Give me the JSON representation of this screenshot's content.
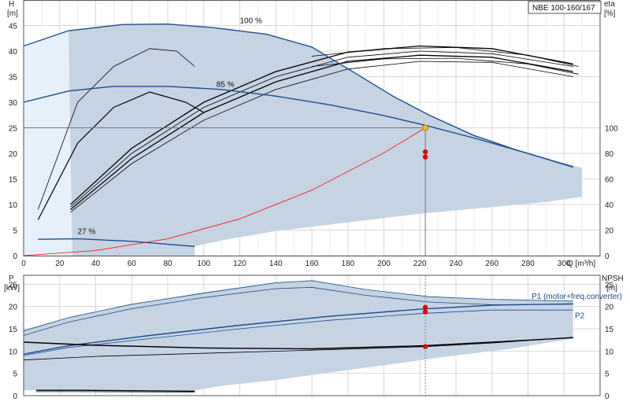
{
  "chart_data": [
    {
      "type": "line",
      "title": "NBE 100-160/167",
      "xlabel": "Q [m³/h]",
      "ylabel_left": "H",
      "ylabel_left_unit": "[m]",
      "ylabel_right": "eta",
      "ylabel_right_unit": "[%]",
      "xlim": [
        0,
        320
      ],
      "ylim_left": [
        0,
        50
      ],
      "ylim_right": [
        0,
        100
      ],
      "x_ticks": [
        "0",
        "20",
        "40",
        "60",
        "80",
        "100",
        "120",
        "140",
        "160",
        "180",
        "200",
        "220",
        "240",
        "260",
        "280",
        "300"
      ],
      "x_tick_values": [
        0,
        20,
        40,
        60,
        80,
        100,
        120,
        140,
        160,
        180,
        200,
        220,
        240,
        260,
        280,
        300
      ],
      "y_left_ticks": [
        "0",
        "5",
        "10",
        "15",
        "20",
        "25",
        "30",
        "35",
        "40",
        "45"
      ],
      "y_left_tick_values": [
        0,
        5,
        10,
        15,
        20,
        25,
        30,
        35,
        40,
        45
      ],
      "y_right_ticks": [
        "0",
        "20",
        "40",
        "60",
        "80",
        "100"
      ],
      "y_right_tick_values": [
        0,
        20,
        40,
        60,
        80,
        100
      ],
      "grid": true,
      "operating_envelope": [
        [
          0,
          41
        ],
        [
          25,
          44
        ],
        [
          55,
          45.2
        ],
        [
          80,
          45.3
        ],
        [
          105,
          44.6
        ],
        [
          135,
          43.3
        ],
        [
          160,
          40.8
        ],
        [
          185,
          35.5
        ],
        [
          205,
          31.2
        ],
        [
          225,
          27.5
        ],
        [
          250,
          23.5
        ],
        [
          275,
          20.5
        ],
        [
          300,
          18
        ],
        [
          310,
          17.2
        ],
        [
          310,
          11.5
        ],
        [
          290,
          10.5
        ],
        [
          260,
          9.5
        ],
        [
          220,
          8.2
        ],
        [
          180,
          6.5
        ],
        [
          140,
          4.8
        ],
        [
          110,
          3
        ],
        [
          95,
          1.8
        ],
        [
          95,
          0
        ],
        [
          27,
          0
        ],
        [
          25,
          2
        ],
        [
          20,
          5
        ],
        [
          13,
          10
        ],
        [
          8,
          15
        ],
        [
          4,
          20
        ],
        [
          2,
          25
        ],
        [
          0,
          28
        ]
      ],
      "head_curves": [
        {
          "label": "100 %",
          "label_at": [
            120,
            45.5
          ],
          "points": [
            [
              0,
              41
            ],
            [
              25,
              44
            ],
            [
              55,
              45.2
            ],
            [
              80,
              45.3
            ],
            [
              105,
              44.6
            ],
            [
              135,
              43.3
            ],
            [
              160,
              40.8
            ],
            [
              185,
              35.5
            ],
            [
              205,
              31.2
            ],
            [
              225,
              27.5
            ],
            [
              250,
              23.5
            ],
            [
              275,
              20.5
            ],
            [
              305,
              17.4
            ]
          ]
        },
        {
          "label": "85 %",
          "label_at": [
            107,
            33
          ],
          "points": [
            [
              0,
              30
            ],
            [
              25,
              32.2
            ],
            [
              50,
              33.1
            ],
            [
              80,
              33.1
            ],
            [
              110,
              32.5
            ],
            [
              140,
              31.2
            ],
            [
              170,
              29.5
            ],
            [
              200,
              27.4
            ],
            [
              223,
              25.5
            ],
            [
              250,
              23
            ],
            [
              280,
              20
            ],
            [
              305,
              17.3
            ]
          ]
        },
        {
          "label": "27 %",
          "label_at": [
            30,
            4.2
          ],
          "points": [
            [
              8,
              3.2
            ],
            [
              30,
              3.3
            ],
            [
              60,
              2.8
            ],
            [
              95,
              1.8
            ]
          ]
        }
      ],
      "eta_curves": [
        {
          "points": [
            [
              8,
              9
            ],
            [
              30,
              30
            ],
            [
              50,
              37
            ],
            [
              70,
              40.5
            ],
            [
              85,
              40
            ],
            [
              95,
              37
            ]
          ],
          "width": 0.8
        },
        {
          "points": [
            [
              8,
              7
            ],
            [
              30,
              22
            ],
            [
              50,
              29
            ],
            [
              70,
              32
            ],
            [
              90,
              30
            ],
            [
              100,
              28
            ]
          ],
          "width": 1.2
        },
        {
          "points": [
            [
              26,
              10
            ],
            [
              60,
              21
            ],
            [
              100,
              30
            ],
            [
              140,
              36
            ],
            [
              180,
              39.8
            ],
            [
              220,
              41
            ],
            [
              260,
              40.5
            ],
            [
              305,
              37.5
            ]
          ],
          "width": 1.3
        },
        {
          "points": [
            [
              26,
              9.5
            ],
            [
              60,
              20
            ],
            [
              100,
              29
            ],
            [
              140,
              35
            ],
            [
              180,
              38.8
            ],
            [
              220,
              40
            ],
            [
              260,
              39.5
            ],
            [
              305,
              37
            ]
          ],
          "width": 0.8
        },
        {
          "points": [
            [
              26,
              9
            ],
            [
              60,
              19
            ],
            [
              100,
              28
            ],
            [
              140,
              34
            ],
            [
              180,
              38
            ],
            [
              220,
              39.2
            ],
            [
              260,
              38.8
            ],
            [
              305,
              36
            ]
          ],
          "width": 1.3
        },
        {
          "points": [
            [
              26,
              8.5
            ],
            [
              60,
              18
            ],
            [
              100,
              26.5
            ],
            [
              140,
              32.5
            ],
            [
              180,
              36.5
            ],
            [
              220,
              38
            ],
            [
              260,
              37.8
            ],
            [
              305,
              35
            ]
          ],
          "width": 0.8
        },
        {
          "points": [
            [
              160,
              39
            ],
            [
              200,
              40.5
            ],
            [
              240,
              40.7
            ],
            [
              280,
              39.2
            ],
            [
              308,
              37
            ]
          ],
          "width": 0.8
        },
        {
          "points": [
            [
              160,
              37
            ],
            [
              200,
              38.5
            ],
            [
              240,
              38.6
            ],
            [
              280,
              37.5
            ],
            [
              308,
              35.5
            ]
          ],
          "width": 0.8
        }
      ],
      "system_curve": {
        "points": [
          [
            0,
            0
          ],
          [
            40,
            1
          ],
          [
            80,
            3.3
          ],
          [
            120,
            7.2
          ],
          [
            160,
            12.8
          ],
          [
            200,
            20.1
          ],
          [
            223,
            25
          ]
        ]
      },
      "duty_point": {
        "x": 223,
        "y": 25,
        "fill": "#f2c318"
      },
      "duty_markers": [
        {
          "x": 223,
          "y": 20.3
        },
        {
          "x": 223,
          "y": 19.3
        }
      ]
    },
    {
      "type": "line",
      "ylabel_left": "P",
      "ylabel_left_unit": "[kW]",
      "ylabel_right": "NPSH",
      "ylabel_right_unit": "[m]",
      "xlim": [
        0,
        320
      ],
      "ylim": [
        0,
        27
      ],
      "y_ticks": [
        "0",
        "5",
        "10",
        "15",
        "20",
        "25"
      ],
      "y_tick_values": [
        0,
        5,
        10,
        15,
        20,
        25
      ],
      "grid": true,
      "power_envelope": [
        [
          0,
          14.8
        ],
        [
          25,
          17.5
        ],
        [
          60,
          20.5
        ],
        [
          100,
          23.2
        ],
        [
          140,
          25.5
        ],
        [
          160,
          25.8
        ],
        [
          190,
          23.8
        ],
        [
          225,
          22.2
        ],
        [
          260,
          21.6
        ],
        [
          305,
          21.3
        ],
        [
          305,
          12.8
        ],
        [
          270,
          10.5
        ],
        [
          230,
          8.5
        ],
        [
          200,
          6.8
        ],
        [
          170,
          5.2
        ],
        [
          140,
          3.5
        ],
        [
          110,
          2.2
        ],
        [
          95,
          1.2
        ],
        [
          0,
          1.2
        ]
      ],
      "series": [
        {
          "name": "P1 (motor+freq.converter)",
          "label_at": [
            282,
            22.4
          ],
          "points": [
            [
              0,
              14.5
            ],
            [
              25,
              17.5
            ],
            [
              60,
              20.5
            ],
            [
              100,
              23
            ],
            [
              140,
              25.3
            ],
            [
              160,
              25.8
            ],
            [
              190,
              23.8
            ],
            [
              225,
              22.2
            ],
            [
              260,
              21.6
            ],
            [
              305,
              21.2
            ]
          ],
          "width": 0.8
        },
        {
          "name": "",
          "points": [
            [
              0,
              13.5
            ],
            [
              25,
              16.5
            ],
            [
              60,
              19.5
            ],
            [
              100,
              22
            ],
            [
              140,
              24
            ],
            [
              160,
              24.3
            ],
            [
              190,
              22.5
            ],
            [
              225,
              21
            ],
            [
              260,
              20.4
            ],
            [
              305,
              20.5
            ]
          ],
          "width": 0.8
        },
        {
          "name": "",
          "points": [
            [
              0,
              9.3
            ],
            [
              25,
              11.2
            ],
            [
              70,
              13.5
            ],
            [
              120,
              15.8
            ],
            [
              170,
              17.8
            ],
            [
              220,
              19.4
            ],
            [
              260,
              20.3
            ],
            [
              305,
              20.6
            ]
          ],
          "width": 1.4
        },
        {
          "name": "P2",
          "label_at": [
            306,
            18.1
          ],
          "points": [
            [
              0,
              9
            ],
            [
              25,
              10.8
            ],
            [
              70,
              12.8
            ],
            [
              120,
              15
            ],
            [
              170,
              16.9
            ],
            [
              220,
              18.4
            ],
            [
              260,
              19.2
            ],
            [
              305,
              19.2
            ]
          ],
          "width": 0.8
        },
        {
          "name": "",
          "points": [
            [
              0,
              8
            ],
            [
              40,
              8.8
            ],
            [
              100,
              9.5
            ],
            [
              160,
              10.2
            ],
            [
              223,
              11
            ],
            [
              260,
              11.8
            ],
            [
              305,
              13.1
            ]
          ],
          "width": 0.8
        },
        {
          "name": "",
          "points": [
            [
              0,
              12
            ],
            [
              40,
              11.3
            ],
            [
              100,
              10.7
            ],
            [
              160,
              10.5
            ],
            [
              223,
              11.2
            ],
            [
              260,
              12
            ],
            [
              305,
              13
            ]
          ],
          "width": 1.4
        },
        {
          "name": "",
          "points": [
            [
              7,
              1.2
            ],
            [
              30,
              1.2
            ],
            [
              95,
              1
            ]
          ],
          "width": 1.4
        },
        {
          "name": "",
          "points": [
            [
              7,
              0.9
            ],
            [
              30,
              0.9
            ],
            [
              95,
              0.8
            ]
          ],
          "width": 0.8
        }
      ],
      "duty_markers": [
        {
          "x": 223,
          "y": 19.8
        },
        {
          "x": 223,
          "y": 18.8
        },
        {
          "x": 223,
          "y": 11
        }
      ]
    }
  ],
  "colors": {
    "envelope_fill": "#c6d3e3",
    "envelope_fill_light": "#e6f0fb",
    "curve_blue": "#1e4e8c",
    "curve_black": "#000000",
    "system_red": "#ff0000",
    "marker_red": "#e00000",
    "grid": "#d8d8d8",
    "axis": "#555555"
  }
}
